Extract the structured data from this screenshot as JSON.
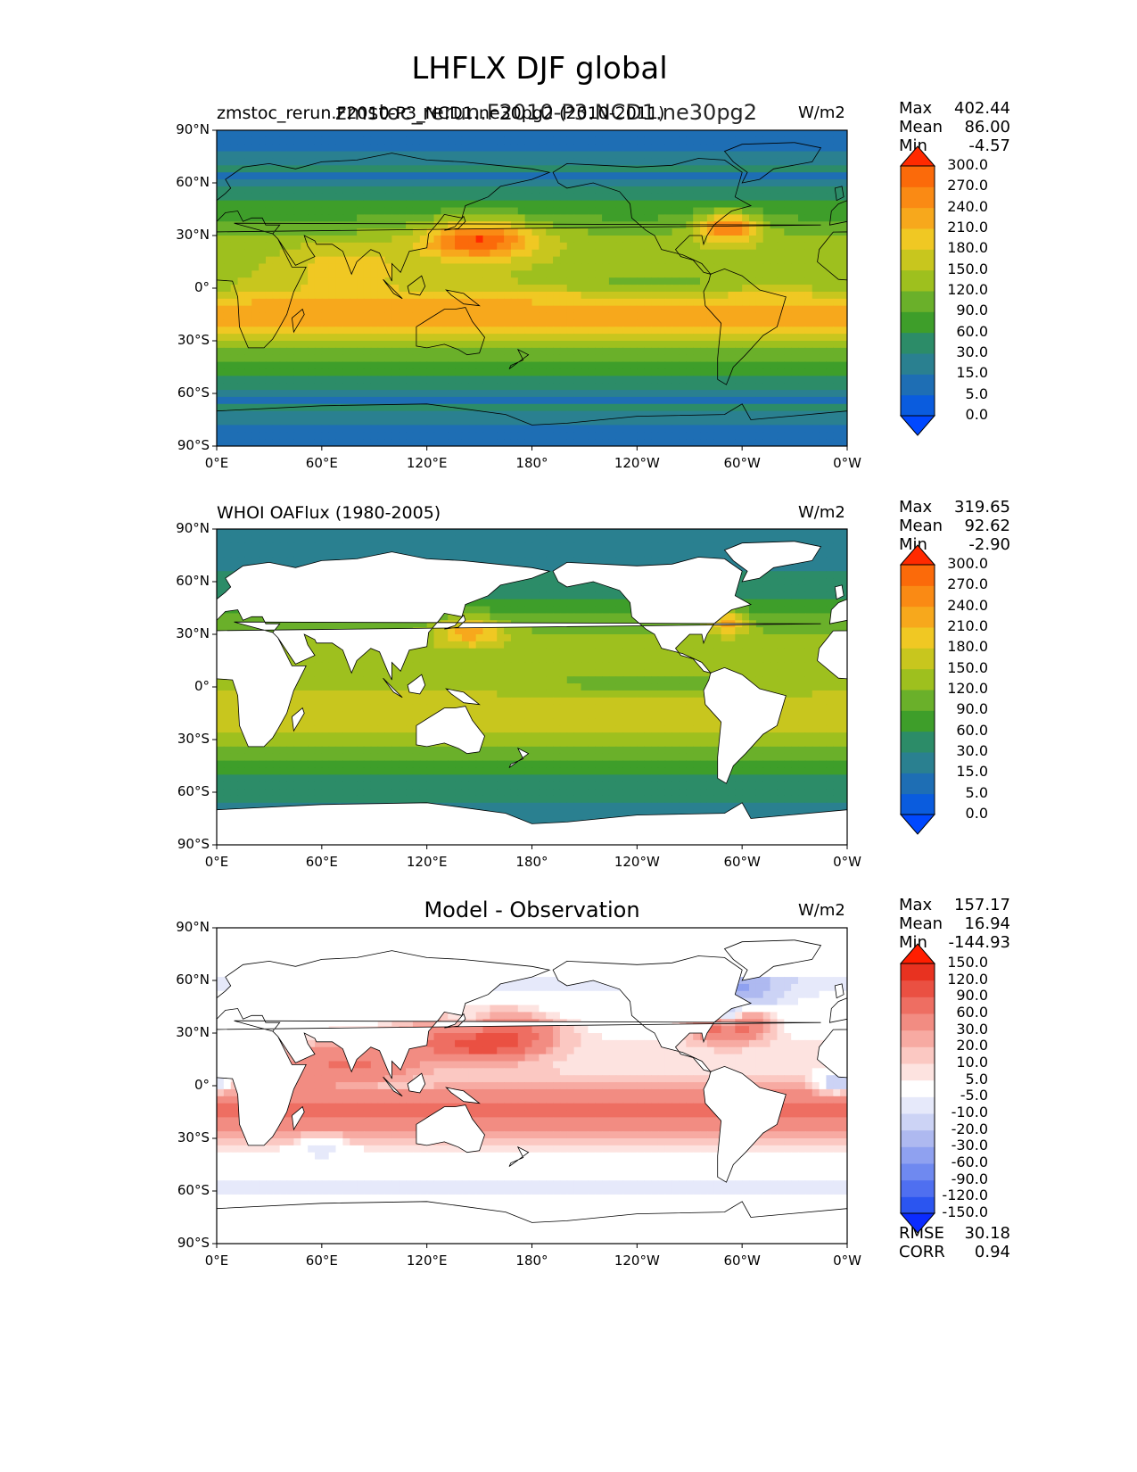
{
  "figure": {
    "title": "LHFLX DJF global",
    "colors": {
      "main": [
        "#0048ff",
        "#0a5cde",
        "#1e6eb4",
        "#2a8090",
        "#2c8c68",
        "#3e9e2a",
        "#6ab02a",
        "#9ec01e",
        "#c8c61e",
        "#f0c823",
        "#f7a81c",
        "#fa8a14",
        "#fb6a0a",
        "#ff2a00"
      ],
      "diff": [
        "#0b2bff",
        "#2b55f0",
        "#4f6ff0",
        "#6f89f0",
        "#8fa1f0",
        "#aeb9f0",
        "#ccd3f5",
        "#e6e9fa",
        "#ffffff",
        "#fde3e0",
        "#fbc8c2",
        "#f7aaa2",
        "#f28c82",
        "#ee6e62",
        "#ea5042",
        "#e83220",
        "#ff1e00"
      ]
    }
  },
  "panels": [
    {
      "id": "model",
      "title_left": "zmstoc_rerun.F2010-P3_NCD1.ne30pg2 (2010-2011)",
      "title_center": "zmstoc_rerun.F2010-P3.NCD1.ne30pg2",
      "units": "W/m2",
      "stats": [
        {
          "label": "Max",
          "value": "402.44"
        },
        {
          "label": "Mean",
          "value": "86.00"
        },
        {
          "label": "Min",
          "value": "-4.57"
        }
      ],
      "colorbar_levels": [
        "0.0",
        "5.0",
        "15.0",
        "30.0",
        "60.0",
        "90.0",
        "120.0",
        "150.0",
        "180.0",
        "210.0",
        "240.0",
        "270.0",
        "300.0"
      ]
    },
    {
      "id": "obs",
      "title_left": "WHOI OAFlux (1980-2005)",
      "title_center": "",
      "units": "W/m2",
      "stats": [
        {
          "label": "Max",
          "value": "319.65"
        },
        {
          "label": "Mean",
          "value": "92.62"
        },
        {
          "label": "Min",
          "value": "-2.90"
        }
      ],
      "colorbar_levels": [
        "0.0",
        "5.0",
        "15.0",
        "30.0",
        "60.0",
        "90.0",
        "120.0",
        "150.0",
        "180.0",
        "210.0",
        "240.0",
        "270.0",
        "300.0"
      ]
    },
    {
      "id": "diff",
      "title_left": "",
      "title_center": "Model - Observation",
      "units": "W/m2",
      "stats": [
        {
          "label": "Max",
          "value": "157.17"
        },
        {
          "label": "Mean",
          "value": "16.94"
        },
        {
          "label": "Min",
          "value": "-144.93"
        }
      ],
      "colorbar_levels": [
        "-150.0",
        "-120.0",
        "-90.0",
        "-60.0",
        "-30.0",
        "-20.0",
        "-10.0",
        "-5.0",
        "5.0",
        "10.0",
        "20.0",
        "30.0",
        "60.0",
        "90.0",
        "120.0",
        "150.0"
      ],
      "metrics": [
        {
          "label": "RMSE",
          "value": "30.18"
        },
        {
          "label": "CORR",
          "value": "0.94"
        }
      ]
    }
  ],
  "axes": {
    "lat_ticks": [
      "90°N",
      "60°N",
      "30°N",
      "0°",
      "30°S",
      "60°S",
      "90°S"
    ],
    "lon_ticks": [
      "0°E",
      "60°E",
      "120°E",
      "180°",
      "120°W",
      "60°W",
      "0°W"
    ]
  }
}
